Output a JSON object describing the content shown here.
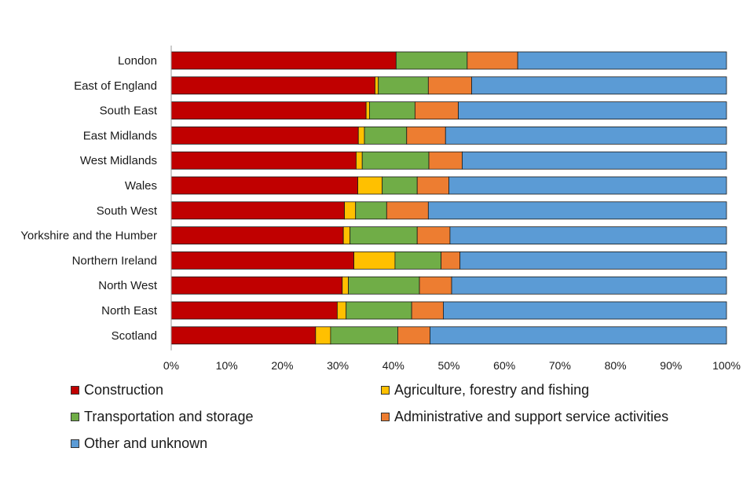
{
  "chart_data": {
    "type": "bar",
    "orientation": "horizontal",
    "stacked": true,
    "percent": true,
    "categories": [
      "London",
      "East of England",
      "South East",
      "East Midlands",
      "West Midlands",
      "Wales",
      "South West",
      "Yorkshire and the Humber",
      "Northern Ireland",
      "North West",
      "North East",
      "Scotland"
    ],
    "series": [
      {
        "name": "Construction",
        "color": "#c00000",
        "values": [
          40.5,
          36.7,
          35.1,
          33.7,
          33.3,
          33.6,
          31.2,
          31.0,
          32.9,
          30.8,
          29.9,
          26.0
        ]
      },
      {
        "name": "Agriculture, forestry and fishing",
        "color": "#ffc000",
        "values": [
          0.0,
          0.6,
          0.6,
          1.1,
          1.1,
          4.4,
          2.0,
          1.2,
          7.4,
          1.1,
          1.6,
          2.7
        ]
      },
      {
        "name": "Transportation and storage",
        "color": "#70ad47",
        "values": [
          12.8,
          9.0,
          8.2,
          7.6,
          12.0,
          6.3,
          5.6,
          12.1,
          8.3,
          12.8,
          11.8,
          12.1
        ]
      },
      {
        "name": "Administrative and support service activities",
        "color": "#ed7d31",
        "values": [
          9.1,
          7.8,
          7.8,
          7.0,
          6.0,
          5.7,
          7.5,
          5.9,
          3.4,
          5.8,
          5.7,
          5.8
        ]
      },
      {
        "name": "Other and unknown",
        "color": "#5b9bd5",
        "values": [
          37.6,
          45.9,
          48.3,
          50.6,
          47.6,
          50.0,
          53.7,
          49.8,
          48.0,
          49.5,
          51.0,
          53.4
        ]
      }
    ],
    "xlim": [
      0,
      100
    ],
    "xticks": [
      "0%",
      "10%",
      "20%",
      "30%",
      "40%",
      "50%",
      "60%",
      "70%",
      "80%",
      "90%",
      "100%"
    ],
    "grid": false,
    "legend_position": "bottom"
  }
}
